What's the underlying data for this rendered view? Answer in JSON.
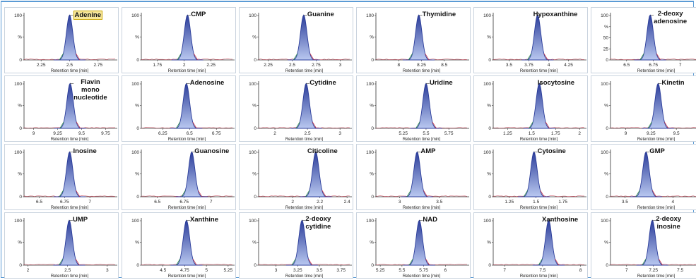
{
  "window": {
    "accent": "#5b9bd5"
  },
  "colors": {
    "peak_fill_top": "#2b3d9a",
    "peak_fill_bottom": "#b9c8f0",
    "trace_red": "#c8354a",
    "trace_green": "#2c8a4a",
    "highlight": "#f7e79b"
  },
  "chromatograms": [
    {
      "name": "Adenine",
      "label_lines": [
        "Adenine"
      ],
      "highlight": true,
      "xlim": [
        2.1,
        2.9
      ],
      "ticks": [
        "2.25",
        "2.5",
        "2.75"
      ],
      "tick_values": [
        2.25,
        2.5,
        2.75
      ],
      "peak_rt": 2.5,
      "y_ticks": [
        "100",
        "%",
        "0"
      ],
      "x_label": "Retention time [min]"
    },
    {
      "name": "CMP",
      "label_lines": [
        "CMP"
      ],
      "highlight": false,
      "xlim": [
        1.6,
        2.45
      ],
      "ticks": [
        "1.75",
        "2",
        "2.25"
      ],
      "tick_values": [
        1.75,
        2,
        2.25
      ],
      "peak_rt": 2.03,
      "y_ticks": [
        "100",
        "%",
        "0"
      ],
      "x_label": "Retention time [min]"
    },
    {
      "name": "Guanine",
      "label_lines": [
        "Guanine"
      ],
      "highlight": false,
      "xlim": [
        2.15,
        3.1
      ],
      "ticks": [
        "2.25",
        "2.5",
        "2.75",
        "3"
      ],
      "tick_values": [
        2.25,
        2.5,
        2.75,
        3
      ],
      "peak_rt": 2.62,
      "y_ticks": [
        "100",
        "%",
        "0"
      ],
      "x_label": "Retention time [min]"
    },
    {
      "name": "Thymidine",
      "label_lines": [
        "Thymidine"
      ],
      "highlight": false,
      "xlim": [
        7.75,
        8.75
      ],
      "ticks": [
        "8",
        "8.25",
        "8.5"
      ],
      "tick_values": [
        8,
        8.25,
        8.5
      ],
      "peak_rt": 8.22,
      "y_ticks": [
        "100",
        "%",
        "0"
      ],
      "x_label": "Retention time [min]"
    },
    {
      "name": "Hypoxanthine",
      "label_lines": [
        "Hypoxanthine"
      ],
      "highlight": false,
      "xlim": [
        3.3,
        4.45
      ],
      "ticks": [
        "3.5",
        "3.75",
        "4",
        "4.25"
      ],
      "tick_values": [
        3.5,
        3.75,
        4,
        4.25
      ],
      "peak_rt": 3.86,
      "y_ticks": [
        "100",
        "%",
        "0"
      ],
      "x_label": "Retention time [min]"
    },
    {
      "name": "2-deoxy adenosine",
      "label_lines": [
        "2-deoxy",
        "adenosine"
      ],
      "highlight": false,
      "xlim": [
        6.35,
        7.2
      ],
      "ticks": [
        "6.5",
        "6.75",
        "7"
      ],
      "tick_values": [
        6.5,
        6.75,
        7
      ],
      "peak_rt": 6.72,
      "y_ticks": [
        "100",
        "%",
        "50",
        "25",
        "0"
      ],
      "x_label": "Retention time [min]"
    },
    {
      "name": "Flavin mono nucleotide",
      "label_lines": [
        "Flavin",
        "mono",
        "nucleotide"
      ],
      "highlight": false,
      "xlim": [
        8.9,
        9.85
      ],
      "ticks": [
        "9",
        "9.25",
        "9.5",
        "9.75"
      ],
      "tick_values": [
        9,
        9.25,
        9.5,
        9.75
      ],
      "peak_rt": 9.38,
      "y_ticks": [
        "100",
        "%",
        "0"
      ],
      "x_label": "Retention time [min]"
    },
    {
      "name": "Adenosine",
      "label_lines": [
        "Adenosine"
      ],
      "highlight": false,
      "xlim": [
        6.05,
        6.9
      ],
      "ticks": [
        "6.25",
        "6.5",
        "6.75"
      ],
      "tick_values": [
        6.25,
        6.5,
        6.75
      ],
      "peak_rt": 6.47,
      "y_ticks": [
        "100",
        "%",
        "0"
      ],
      "x_label": "Retention time [min]"
    },
    {
      "name": "Cytidine",
      "label_lines": [
        "Cytidine"
      ],
      "highlight": false,
      "xlim": [
        1.75,
        3.15
      ],
      "ticks": [
        "2",
        "2.5",
        "3"
      ],
      "tick_values": [
        2,
        2.5,
        3
      ],
      "peak_rt": 2.48,
      "y_ticks": [
        "100",
        "%",
        "0"
      ],
      "x_label": "Retention time [min]"
    },
    {
      "name": "Uridine",
      "label_lines": [
        "Uridine"
      ],
      "highlight": false,
      "xlim": [
        4.95,
        5.95
      ],
      "ticks": [
        "5.25",
        "5.5",
        "5.75"
      ],
      "tick_values": [
        5.25,
        5.5,
        5.75
      ],
      "peak_rt": 5.5,
      "y_ticks": [
        "100",
        "%",
        "0"
      ],
      "x_label": "Retention time [min]"
    },
    {
      "name": "Isocytosine",
      "label_lines": [
        "Isocytosine"
      ],
      "highlight": false,
      "xlim": [
        1.1,
        2.05
      ],
      "ticks": [
        "1.25",
        "1.5",
        "1.75",
        "2"
      ],
      "tick_values": [
        1.25,
        1.5,
        1.75,
        2
      ],
      "peak_rt": 1.58,
      "y_ticks": [
        "100",
        "%",
        "0"
      ],
      "x_label": "Retention time [min]"
    },
    {
      "name": "Kinetin",
      "label_lines": [
        "Kinetin"
      ],
      "highlight": false,
      "xlim": [
        8.85,
        9.75
      ],
      "ticks": [
        "9",
        "9.25",
        "9.5"
      ],
      "tick_values": [
        9,
        9.25,
        9.5
      ],
      "peak_rt": 9.32,
      "y_ticks": [
        "100",
        "%",
        "0"
      ],
      "x_label": "Retention time [min]"
    },
    {
      "name": "Inosine",
      "label_lines": [
        "Inosine"
      ],
      "highlight": false,
      "xlim": [
        6.35,
        7.25
      ],
      "ticks": [
        "6.5",
        "6.75",
        "7"
      ],
      "tick_values": [
        6.5,
        6.75,
        7
      ],
      "peak_rt": 6.8,
      "y_ticks": [
        "100",
        "%",
        "0"
      ],
      "x_label": "Retention time [min]"
    },
    {
      "name": "Guanosine",
      "label_lines": [
        "Guanosine"
      ],
      "highlight": false,
      "xlim": [
        6.35,
        7.2
      ],
      "ticks": [
        "6.5",
        "6.75",
        "7"
      ],
      "tick_values": [
        6.5,
        6.75,
        7
      ],
      "peak_rt": 6.82,
      "y_ticks": [
        "100",
        "%",
        "0"
      ],
      "x_label": "Retention time [min]"
    },
    {
      "name": "Citicoline",
      "label_lines": [
        "Citicoline"
      ],
      "highlight": false,
      "xlim": [
        1.75,
        2.42
      ],
      "ticks": [
        "2",
        "2.2",
        "2.4"
      ],
      "tick_values": [
        2,
        2.2,
        2.4
      ],
      "peak_rt": 2.17,
      "y_ticks": [
        "100",
        "%",
        "0"
      ],
      "x_label": "Retention time [min]"
    },
    {
      "name": "AMP",
      "label_lines": [
        "AMP"
      ],
      "highlight": false,
      "xlim": [
        2.7,
        3.85
      ],
      "ticks": [
        "3",
        "3.5"
      ],
      "tick_values": [
        3,
        3.5
      ],
      "peak_rt": 3.22,
      "y_ticks": [
        "100",
        "%",
        "0"
      ],
      "x_label": "Retention time [min]"
    },
    {
      "name": "Cytosine",
      "label_lines": [
        "Cytosine"
      ],
      "highlight": false,
      "xlim": [
        1.1,
        1.95
      ],
      "ticks": [
        "1.25",
        "1.5",
        "1.75"
      ],
      "tick_values": [
        1.25,
        1.5,
        1.75
      ],
      "peak_rt": 1.48,
      "y_ticks": [
        "100",
        "%",
        "0"
      ],
      "x_label": "Retention time [min]"
    },
    {
      "name": "GMP",
      "label_lines": [
        "GMP"
      ],
      "highlight": false,
      "xlim": [
        3.35,
        4.3
      ],
      "ticks": [
        "3.5",
        "4"
      ],
      "tick_values": [
        3.5,
        4
      ],
      "peak_rt": 3.72,
      "y_ticks": [
        "100",
        "%",
        "0"
      ],
      "x_label": "Retention time [min]"
    },
    {
      "name": "UMP",
      "label_lines": [
        "UMP"
      ],
      "highlight": false,
      "xlim": [
        1.95,
        3.1
      ],
      "ticks": [
        "2",
        "2.5",
        "3"
      ],
      "tick_values": [
        2,
        2.5,
        3
      ],
      "peak_rt": 2.52,
      "y_ticks": [
        "100",
        "%",
        "0"
      ],
      "x_label": "Retention time [min]"
    },
    {
      "name": "Xanthine",
      "label_lines": [
        "Xanthine"
      ],
      "highlight": false,
      "xlim": [
        4.25,
        5.3
      ],
      "ticks": [
        "4.5",
        "4.75",
        "5",
        "5.25"
      ],
      "tick_values": [
        4.5,
        4.75,
        5,
        5.25
      ],
      "peak_rt": 4.77,
      "y_ticks": [
        "100",
        "%",
        "0"
      ],
      "x_label": "Retention time [min]"
    },
    {
      "name": "2-deoxy cytidine",
      "label_lines": [
        "2-deoxy",
        "cytidine"
      ],
      "highlight": false,
      "xlim": [
        2.8,
        3.85
      ],
      "ticks": [
        "3",
        "3.25",
        "3.5",
        "3.75"
      ],
      "tick_values": [
        3,
        3.25,
        3.5,
        3.75
      ],
      "peak_rt": 3.3,
      "y_ticks": [
        "100",
        "%",
        "0"
      ],
      "x_label": "Retention time [min]"
    },
    {
      "name": "NAD",
      "label_lines": [
        "NAD"
      ],
      "highlight": false,
      "xlim": [
        5.2,
        6.25
      ],
      "ticks": [
        "5.25",
        "5.5",
        "5.75",
        "6"
      ],
      "tick_values": [
        5.25,
        5.5,
        5.75,
        6
      ],
      "peak_rt": 5.7,
      "y_ticks": [
        "100",
        "%",
        "0"
      ],
      "x_label": "Retention time [min]"
    },
    {
      "name": "Xanthosine",
      "label_lines": [
        "Xanthosine"
      ],
      "highlight": false,
      "xlim": [
        6.85,
        8.05
      ],
      "ticks": [
        "7",
        "7.5",
        "8"
      ],
      "tick_values": [
        7,
        7.5,
        8
      ],
      "peak_rt": 7.58,
      "y_ticks": [
        "100",
        "%",
        "0"
      ],
      "x_label": "Retention time [min]"
    },
    {
      "name": "2-deoxy inosine",
      "label_lines": [
        "2-deoxy",
        "inosine"
      ],
      "highlight": false,
      "xlim": [
        6.85,
        7.7
      ],
      "ticks": [
        "7",
        "7.25",
        "7.5"
      ],
      "tick_values": [
        7,
        7.25,
        7.5
      ],
      "peak_rt": 7.24,
      "y_ticks": [
        "100",
        "%",
        "0"
      ],
      "x_label": "Retention time [min]"
    }
  ]
}
